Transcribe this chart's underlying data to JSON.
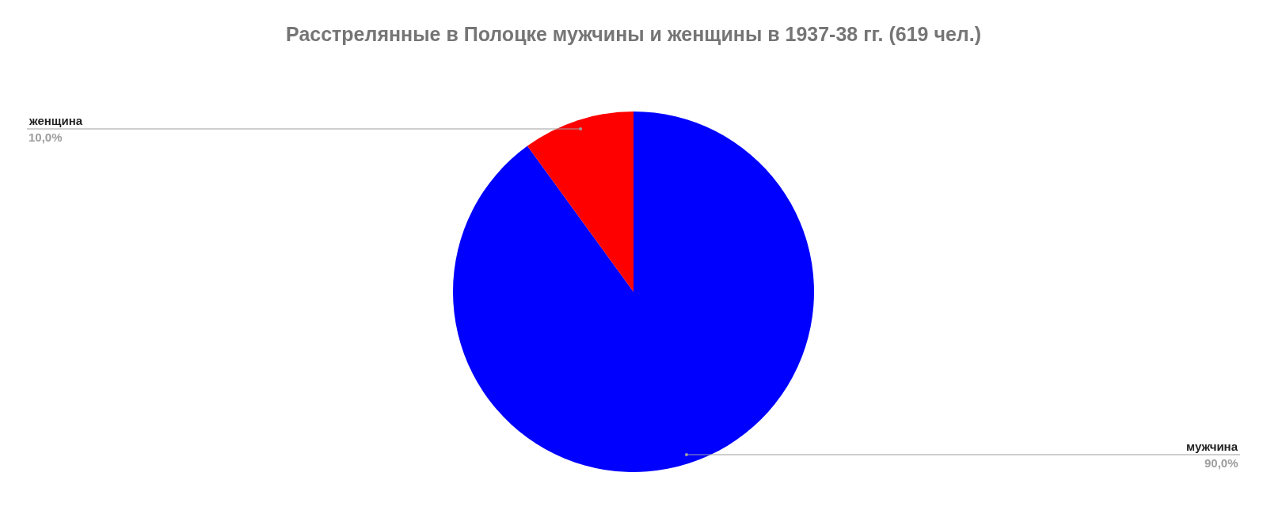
{
  "chart_data": {
    "type": "pie",
    "title": "Расстрелянные в Полоцке мужчины и женщины в 1937-38 гг. (619 чел.)",
    "categories": [
      "мужчина",
      "женщина"
    ],
    "values": [
      90,
      10
    ],
    "colors": [
      "#0000ff",
      "#ff0000"
    ],
    "value_labels": [
      "90,0%",
      "10,0%"
    ],
    "legend": false
  }
}
